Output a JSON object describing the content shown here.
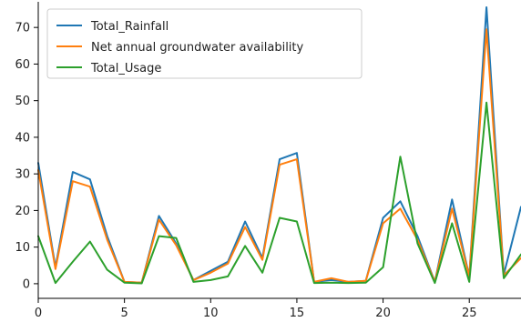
{
  "chart_data": {
    "type": "line",
    "title": "",
    "xlabel": "",
    "ylabel": "",
    "xlim": [
      0,
      28
    ],
    "ylim": [
      -4,
      77
    ],
    "x_ticks": [
      0,
      5,
      10,
      15,
      20,
      25
    ],
    "y_ticks": [
      0,
      10,
      20,
      30,
      40,
      50,
      60,
      70
    ],
    "grid": false,
    "legend_position": "top-left",
    "x": [
      0,
      1,
      2,
      3,
      4,
      5,
      6,
      7,
      8,
      9,
      10,
      11,
      12,
      13,
      14,
      15,
      16,
      17,
      18,
      19,
      20,
      21,
      22,
      23,
      24,
      25,
      26,
      27,
      28
    ],
    "series": [
      {
        "name": "Total_Rainfall",
        "color": "#1f77b4",
        "values": [
          33,
          4.5,
          30.5,
          28.5,
          13,
          0.5,
          0.3,
          18.5,
          11,
          1,
          3.5,
          6,
          17,
          7,
          34,
          35.7,
          0.5,
          1,
          0.5,
          0.8,
          18,
          22.5,
          13,
          0.5,
          23,
          2,
          75.5,
          2.5,
          21
        ]
      },
      {
        "name": "Net annual groundwater availability",
        "color": "#ff7f0e",
        "values": [
          31,
          4,
          28,
          26.5,
          12,
          0.5,
          0.3,
          17.5,
          10.5,
          1,
          3,
          5.5,
          15.5,
          6.5,
          32.5,
          34,
          0.5,
          1.5,
          0.5,
          0.8,
          16.5,
          20.5,
          12,
          0.5,
          20.5,
          2,
          69.5,
          2.3,
          7
        ]
      },
      {
        "name": "Total_Usage",
        "color": "#2ca02c",
        "values": [
          13,
          0.2,
          6,
          11.5,
          3.8,
          0.3,
          0.1,
          13,
          12.5,
          0.5,
          1,
          2,
          10.3,
          3,
          18,
          17,
          0.2,
          0.3,
          0.2,
          0.3,
          4.5,
          34.7,
          11,
          0.2,
          16.5,
          0.5,
          49.5,
          1.5,
          8
        ]
      }
    ]
  }
}
